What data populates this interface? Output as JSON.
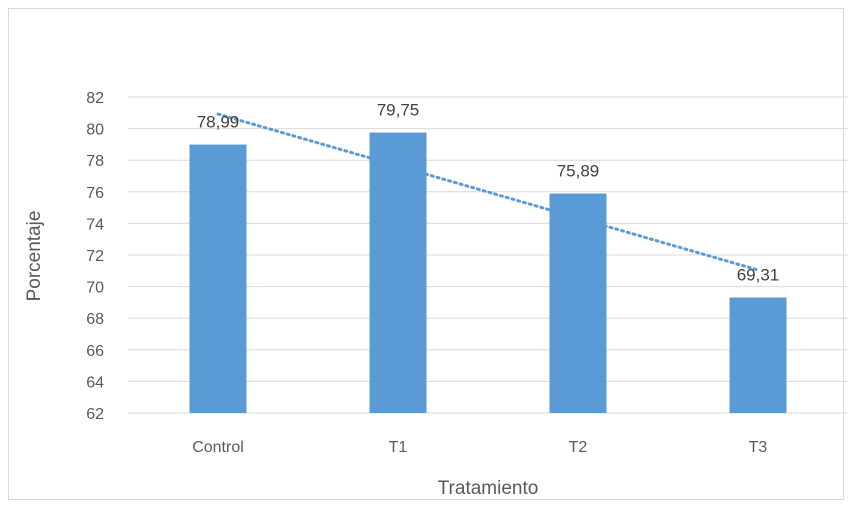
{
  "chart_data": {
    "type": "bar",
    "title": "",
    "xlabel": "Tratamiento",
    "ylabel": "Porcentaje",
    "categories": [
      "Control",
      "T1",
      "T2",
      "T3"
    ],
    "values": [
      78.99,
      79.75,
      75.89,
      69.31
    ],
    "data_labels": [
      "78,99",
      "79,75",
      "75,89",
      "69,31"
    ],
    "ylim": [
      62,
      82
    ],
    "yticks": [
      "62",
      "64",
      "66",
      "68",
      "70",
      "72",
      "74",
      "76",
      "78",
      "80",
      "82"
    ],
    "grid": true,
    "legend": "none",
    "trendline": {
      "type": "linear",
      "style": "dotted"
    },
    "colors": {
      "bar": "#5b9bd5",
      "trendline": "#5b9bd5",
      "grid": "#d9d9d9",
      "text": "#595959"
    }
  }
}
